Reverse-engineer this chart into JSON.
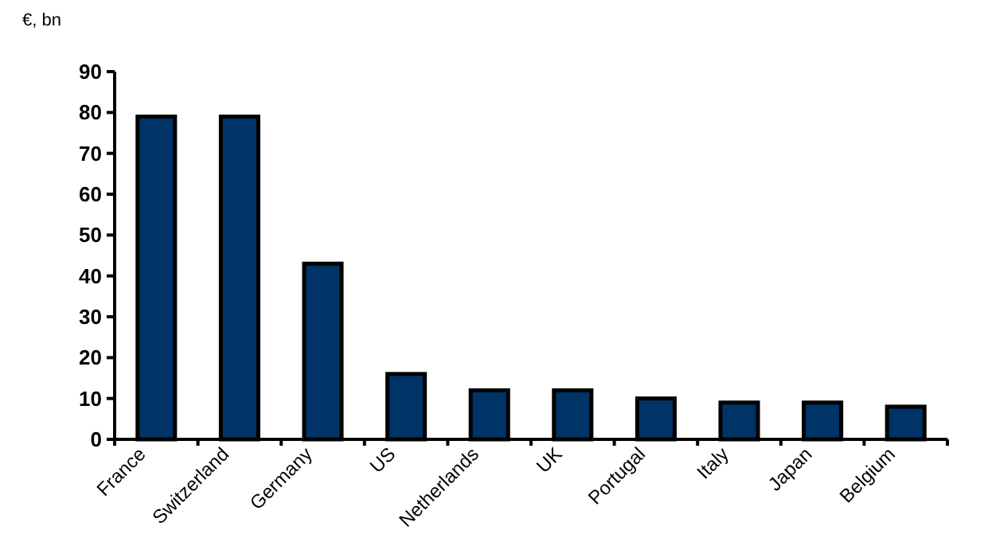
{
  "chart_data": {
    "type": "bar",
    "ylabel": "€, bn",
    "categories": [
      "France",
      "Switzerland",
      "Germany",
      "US",
      "Netherlands",
      "UK",
      "Portugal",
      "Italy",
      "Japan",
      "Belgium"
    ],
    "values": [
      79,
      79,
      43,
      16,
      12,
      12,
      10,
      9,
      9,
      8
    ],
    "color": "#003366",
    "ylim": [
      0,
      90
    ],
    "yticks": [
      0,
      10,
      20,
      30,
      40,
      50,
      60,
      70,
      80,
      90
    ]
  }
}
